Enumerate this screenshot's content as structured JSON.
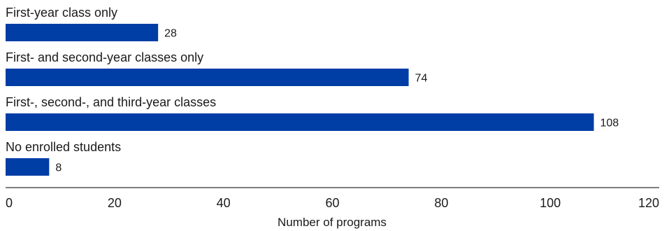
{
  "chart_data": {
    "type": "bar",
    "orientation": "horizontal",
    "categories": [
      "First-year class only",
      "First- and second-year classes only",
      "First-, second-, and third-year classes",
      "No enrolled students"
    ],
    "values": [
      28,
      74,
      108,
      8
    ],
    "value_labels": [
      "28",
      "74",
      "108",
      "8"
    ],
    "title": "",
    "xlabel": "Number of programs",
    "ylabel": "",
    "xlim": [
      0,
      120
    ],
    "xticks": [
      0,
      20,
      40,
      60,
      80,
      100,
      120
    ],
    "xtick_labels": [
      "0",
      "20",
      "40",
      "60",
      "80",
      "100",
      "120"
    ],
    "grid": false,
    "legend": "none"
  },
  "colors": {
    "bar": "#003DA5",
    "axis": "#333333",
    "text": "#1a1a1a"
  }
}
